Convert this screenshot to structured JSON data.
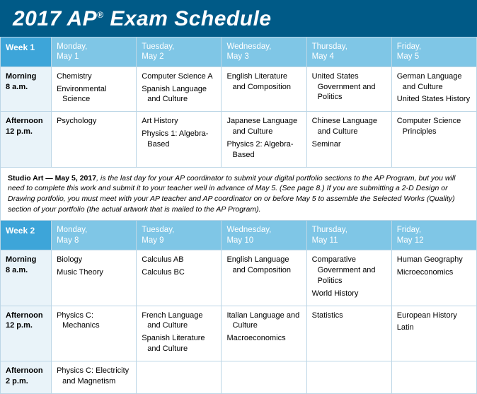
{
  "title_html": "2017 AP<sup>®</sup> Exam Schedule",
  "colors": {
    "header_bg": "#005a87",
    "week_bg": "#3da5d9",
    "day_bg": "#7fc6e6",
    "time_bg": "#e9f3f9",
    "border": "#bcd6e6"
  },
  "weeks": [
    {
      "label": "Week 1",
      "days": [
        {
          "name": "Monday,",
          "date": "May 1"
        },
        {
          "name": "Tuesday,",
          "date": "May 2"
        },
        {
          "name": "Wednesday,",
          "date": "May 3"
        },
        {
          "name": "Thursday,",
          "date": "May 4"
        },
        {
          "name": "Friday,",
          "date": "May 5"
        }
      ],
      "rows": [
        {
          "time_label": "Morning",
          "time_sub": "8 a.m.",
          "cells": [
            [
              "Chemistry",
              "Environmental Science"
            ],
            [
              "Computer Science A",
              "Spanish Language and Culture"
            ],
            [
              "English Literature and Composition"
            ],
            [
              "United States Government and Politics"
            ],
            [
              "German Language and Culture",
              "United States History"
            ]
          ]
        },
        {
          "time_label": "Afternoon",
          "time_sub": "12 p.m.",
          "cells": [
            [
              "Psychology"
            ],
            [
              "Art History",
              "Physics 1: Algebra-Based"
            ],
            [
              "Japanese Language and Culture",
              "Physics 2: Algebra-Based"
            ],
            [
              "Chinese Language and Culture",
              "Seminar"
            ],
            [
              "Computer Science Principles"
            ]
          ]
        }
      ],
      "note": {
        "lead": "Studio Art — May 5, 2017",
        "rest": ", is the last day for your AP coordinator to submit your digital portfolio sections to the AP Program, but you will need to complete this work and submit it to your teacher well in advance of May 5. (See page 8.) If you are submitting a 2-D Design or Drawing portfolio, you must meet with your AP teacher and AP coordinator on or before May 5 to assemble the Selected Works (Quality) section of your portfolio (the actual artwork that is mailed to the AP Program)."
      }
    },
    {
      "label": "Week 2",
      "days": [
        {
          "name": "Monday,",
          "date": "May 8"
        },
        {
          "name": "Tuesday,",
          "date": "May 9"
        },
        {
          "name": "Wednesday,",
          "date": "May 10"
        },
        {
          "name": "Thursday,",
          "date": "May 11"
        },
        {
          "name": "Friday,",
          "date": "May 12"
        }
      ],
      "rows": [
        {
          "time_label": "Morning",
          "time_sub": "8 a.m.",
          "cells": [
            [
              "Biology",
              "Music Theory"
            ],
            [
              "Calculus AB",
              "Calculus BC"
            ],
            [
              "English Language and Composition"
            ],
            [
              "Comparative Government and Politics",
              "World History"
            ],
            [
              "Human Geography",
              "Microeconomics"
            ]
          ]
        },
        {
          "time_label": "Afternoon",
          "time_sub": "12 p.m.",
          "cells": [
            [
              "Physics C: Mechanics"
            ],
            [
              "French Language and Culture",
              "Spanish Literature and Culture"
            ],
            [
              "Italian Language and Culture",
              "Macroeconomics"
            ],
            [
              "Statistics"
            ],
            [
              "European History",
              "Latin"
            ]
          ]
        },
        {
          "time_label": "Afternoon",
          "time_sub": "2 p.m.",
          "cells": [
            [
              "Physics C: Electricity and Magnetism"
            ],
            [],
            [],
            [],
            []
          ]
        }
      ]
    }
  ]
}
